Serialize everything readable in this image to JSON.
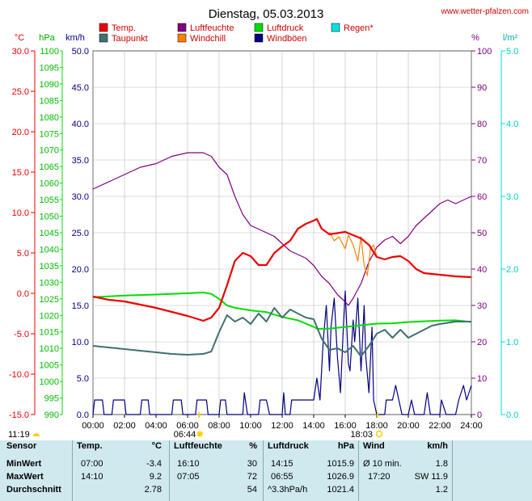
{
  "header": {
    "title": "Dienstag, 05.03.2013",
    "site": "www.wetter-pfalzen.com"
  },
  "legend": [
    {
      "label": "Temp.",
      "color": "#ee0000"
    },
    {
      "label": "Luftfeuchte",
      "color": "#800080"
    },
    {
      "label": "Luftdruck",
      "color": "#00dd00"
    },
    {
      "label": "Regen*",
      "color": "#00e0e0"
    },
    {
      "label": "Taupunkt",
      "color": "#407070"
    },
    {
      "label": "Windchill",
      "color": "#ff8000"
    },
    {
      "label": "Windböen",
      "color": "#000080"
    }
  ],
  "units": {
    "temp": "°C",
    "pressure": "hPa",
    "wind": "km/h",
    "humidity": "%",
    "rain": "l/m²"
  },
  "axes": {
    "temp_ticks": [
      "30.0",
      "25.0",
      "20.0",
      "15.0",
      "10.0",
      "5.0",
      "0.0",
      "-5.0",
      "-10.0",
      "-15.0"
    ],
    "pressure_ticks": [
      "1100",
      "1095",
      "1090",
      "1085",
      "1080",
      "1075",
      "1070",
      "1065",
      "1060",
      "1055",
      "1050",
      "1045",
      "1040",
      "1035",
      "1030",
      "1025",
      "1020",
      "1015",
      "1010",
      "1005",
      "1000",
      "995",
      "990"
    ],
    "wind_ticks": [
      "50.0",
      "45.0",
      "40.0",
      "35.0",
      "30.0",
      "25.0",
      "20.0",
      "15.0",
      "10.0",
      "5.0",
      "0.0"
    ],
    "humidity_ticks": [
      "100",
      "90",
      "80",
      "70",
      "60",
      "50",
      "40",
      "30",
      "20",
      "10",
      "0"
    ],
    "rain_ticks": [
      "5.0",
      "4.0",
      "3.0",
      "2.0",
      "1.0",
      "0.0"
    ],
    "time_ticks": [
      "00:00",
      "02:00",
      "04:00",
      "06:00",
      "08:00",
      "10:00",
      "12:00",
      "14:00",
      "16:00",
      "18:00",
      "20:00",
      "22:00",
      "24:00"
    ]
  },
  "sun": {
    "sunrise": "06:44",
    "sunset": "18:03",
    "moonset": "11:19"
  },
  "table": {
    "headers": {
      "sensor": "Sensor",
      "temp": "Temp.",
      "temp_unit": "°C",
      "hum": "Luftfeuchte",
      "hum_unit": "%",
      "press": "Luftdruck",
      "press_unit": "hPa",
      "wind": "Wind",
      "wind_unit": "km/h"
    },
    "rows": [
      {
        "label": "MinWert",
        "t_time": "07:00",
        "t_val": "-3.4",
        "h_time": "16:10",
        "h_val": "30",
        "p_time": "14:15",
        "p_val": "1015.9",
        "w_time": "Ø 10 min.",
        "w_val": "1.8"
      },
      {
        "label": "MaxWert",
        "t_time": "14:10",
        "t_val": "9.2",
        "h_time": "07:05",
        "h_val": "72",
        "p_time": "06:55",
        "p_val": "1026.9",
        "w_time": "17:20",
        "w_val": "SW 11.9"
      },
      {
        "label": "Durchschnitt",
        "t_time": "",
        "t_val": "2.78",
        "h_time": "",
        "h_val": "54",
        "p_time": "^3.3hPa/h",
        "p_val": "1021.4",
        "w_time": "",
        "w_val": "1.2"
      }
    ]
  },
  "chart_data": {
    "type": "line",
    "title": "Dienstag, 05.03.2013",
    "x_label": "",
    "x_range": [
      "00:00",
      "24:00"
    ],
    "series": [
      {
        "name": "Temp.",
        "axis": "°C",
        "ylim": [
          -15,
          30
        ],
        "points": [
          [
            0,
            -0.4
          ],
          [
            1,
            -0.8
          ],
          [
            2,
            -1.0
          ],
          [
            3,
            -1.4
          ],
          [
            4,
            -1.8
          ],
          [
            5,
            -2.3
          ],
          [
            6,
            -2.8
          ],
          [
            6.5,
            -3.1
          ],
          [
            7,
            -3.4
          ],
          [
            7.5,
            -3.0
          ],
          [
            8,
            -1.8
          ],
          [
            8.5,
            1.0
          ],
          [
            9,
            4.0
          ],
          [
            9.5,
            5.0
          ],
          [
            10,
            4.6
          ],
          [
            10.5,
            3.5
          ],
          [
            11,
            3.5
          ],
          [
            11.5,
            5.0
          ],
          [
            12,
            5.8
          ],
          [
            12.5,
            6.5
          ],
          [
            13,
            8.0
          ],
          [
            13.5,
            8.6
          ],
          [
            14,
            9.0
          ],
          [
            14.2,
            9.2
          ],
          [
            14.5,
            8.0
          ],
          [
            15,
            7.3
          ],
          [
            16,
            7.6
          ],
          [
            16.5,
            7.2
          ],
          [
            17,
            6.8
          ],
          [
            17.5,
            6.0
          ],
          [
            18,
            4.5
          ],
          [
            18.5,
            4.2
          ],
          [
            19,
            4.5
          ],
          [
            19.5,
            4.6
          ],
          [
            20,
            4.0
          ],
          [
            20.5,
            3.0
          ],
          [
            21,
            2.5
          ],
          [
            22,
            2.3
          ],
          [
            23,
            2.1
          ],
          [
            24,
            2.0
          ]
        ]
      },
      {
        "name": "Luftfeuchte",
        "axis": "%",
        "ylim": [
          0,
          100
        ],
        "points": [
          [
            0,
            62
          ],
          [
            1,
            64
          ],
          [
            2,
            66
          ],
          [
            3,
            68
          ],
          [
            4,
            69
          ],
          [
            5,
            71
          ],
          [
            6,
            72
          ],
          [
            7,
            72
          ],
          [
            7.5,
            71
          ],
          [
            8,
            68
          ],
          [
            8.5,
            66
          ],
          [
            9,
            60
          ],
          [
            9.5,
            55
          ],
          [
            10,
            52
          ],
          [
            10.5,
            51
          ],
          [
            11,
            50
          ],
          [
            11.5,
            49
          ],
          [
            12,
            47
          ],
          [
            12.5,
            45
          ],
          [
            13,
            44
          ],
          [
            13.5,
            43
          ],
          [
            14,
            41
          ],
          [
            14.5,
            38
          ],
          [
            15,
            36
          ],
          [
            15.5,
            33
          ],
          [
            16,
            31
          ],
          [
            16.2,
            30
          ],
          [
            16.5,
            32
          ],
          [
            17,
            36
          ],
          [
            17.5,
            42
          ],
          [
            18,
            46
          ],
          [
            18.5,
            48
          ],
          [
            19,
            49
          ],
          [
            19.5,
            47
          ],
          [
            20,
            49
          ],
          [
            20.5,
            52
          ],
          [
            21,
            54
          ],
          [
            21.5,
            56
          ],
          [
            22,
            58
          ],
          [
            22.5,
            59
          ],
          [
            23,
            58
          ],
          [
            24,
            60
          ]
        ]
      },
      {
        "name": "Luftdruck",
        "axis": "hPa",
        "ylim": [
          990,
          1100
        ],
        "points": [
          [
            0,
            1025.5
          ],
          [
            2,
            1026.0
          ],
          [
            4,
            1026.3
          ],
          [
            6,
            1026.7
          ],
          [
            7,
            1026.9
          ],
          [
            7.5,
            1026.5
          ],
          [
            8,
            1025.0
          ],
          [
            8.5,
            1023.0
          ],
          [
            9,
            1022.3
          ],
          [
            10,
            1021.5
          ],
          [
            11,
            1021.0
          ],
          [
            12,
            1019.5
          ],
          [
            13,
            1018.5
          ],
          [
            14,
            1016.5
          ],
          [
            14.25,
            1015.9
          ],
          [
            15,
            1016.0
          ],
          [
            16,
            1016.5
          ],
          [
            17,
            1017.0
          ],
          [
            18,
            1017.5
          ],
          [
            19,
            1017.6
          ],
          [
            20,
            1018.0
          ],
          [
            21,
            1018.2
          ],
          [
            22,
            1018.4
          ],
          [
            23,
            1018.5
          ],
          [
            24,
            1018.0
          ]
        ]
      },
      {
        "name": "Taupunkt",
        "axis": "°C",
        "ylim": [
          -15,
          30
        ],
        "points": [
          [
            0,
            -6.5
          ],
          [
            1,
            -6.7
          ],
          [
            2,
            -6.9
          ],
          [
            3,
            -7.1
          ],
          [
            4,
            -7.3
          ],
          [
            5,
            -7.5
          ],
          [
            6,
            -7.6
          ],
          [
            7,
            -7.5
          ],
          [
            7.5,
            -7.2
          ],
          [
            8,
            -4.8
          ],
          [
            8.5,
            -2.7
          ],
          [
            9,
            -3.5
          ],
          [
            9.5,
            -3.0
          ],
          [
            10,
            -3.8
          ],
          [
            10.5,
            -2.5
          ],
          [
            11,
            -3.5
          ],
          [
            11.5,
            -1.8
          ],
          [
            12,
            -3.0
          ],
          [
            12.5,
            -2.0
          ],
          [
            13,
            -2.5
          ],
          [
            13.5,
            -3.0
          ],
          [
            14,
            -3.2
          ],
          [
            14.5,
            -5.6
          ],
          [
            15,
            -7.0
          ],
          [
            15.5,
            -6.8
          ],
          [
            16,
            -7.3
          ],
          [
            16.5,
            -6.5
          ],
          [
            17,
            -7.8
          ],
          [
            17.5,
            -6.5
          ],
          [
            18,
            -5.0
          ],
          [
            18.5,
            -4.5
          ],
          [
            19,
            -5.5
          ],
          [
            19.5,
            -4.5
          ],
          [
            20,
            -5.5
          ],
          [
            20.5,
            -5.0
          ],
          [
            21,
            -4.5
          ],
          [
            21.5,
            -4.0
          ],
          [
            22,
            -3.8
          ],
          [
            23,
            -3.5
          ],
          [
            24,
            -3.5
          ]
        ]
      },
      {
        "name": "Windchill",
        "axis": "°C",
        "ylim": [
          -15,
          30
        ],
        "points": [
          [
            15,
            7.6
          ],
          [
            15.3,
            6.5
          ],
          [
            15.6,
            7.0
          ],
          [
            16,
            5.5
          ],
          [
            16.2,
            7.2
          ],
          [
            16.5,
            6.0
          ],
          [
            16.8,
            4.0
          ],
          [
            17.0,
            7.0
          ],
          [
            17.2,
            3.5
          ],
          [
            17.4,
            2.2
          ],
          [
            17.6,
            5.5
          ],
          [
            17.8,
            6.0
          ],
          [
            18,
            4.5
          ]
        ]
      },
      {
        "name": "Windböen",
        "axis": "km/h",
        "ylim": [
          0,
          50
        ],
        "points": [
          [
            0,
            0
          ],
          [
            0.1,
            2
          ],
          [
            0.6,
            2
          ],
          [
            0.7,
            0
          ],
          [
            1.2,
            0
          ],
          [
            1.3,
            2
          ],
          [
            2.0,
            2
          ],
          [
            2.1,
            0
          ],
          [
            3,
            0
          ],
          [
            3.1,
            2
          ],
          [
            3.5,
            2
          ],
          [
            3.6,
            0
          ],
          [
            5,
            0
          ],
          [
            5.1,
            2
          ],
          [
            5.6,
            2
          ],
          [
            5.7,
            0
          ],
          [
            6.5,
            0
          ],
          [
            6.6,
            2
          ],
          [
            7.2,
            2
          ],
          [
            7.3,
            0
          ],
          [
            8,
            0
          ],
          [
            8.1,
            2
          ],
          [
            8.4,
            2
          ],
          [
            8.5,
            0
          ],
          [
            9.5,
            0
          ],
          [
            9.6,
            3
          ],
          [
            9.8,
            0
          ],
          [
            10.5,
            0
          ],
          [
            10.6,
            2
          ],
          [
            11,
            2
          ],
          [
            11.2,
            0
          ],
          [
            12,
            0
          ],
          [
            12.1,
            3
          ],
          [
            12.2,
            0
          ],
          [
            12.5,
            0
          ],
          [
            12.6,
            2
          ],
          [
            14,
            2
          ],
          [
            14.2,
            5
          ],
          [
            14.4,
            2
          ],
          [
            14.6,
            10
          ],
          [
            14.8,
            15
          ],
          [
            15,
            6
          ],
          [
            15.1,
            12
          ],
          [
            15.3,
            16
          ],
          [
            15.5,
            8
          ],
          [
            15.7,
            3
          ],
          [
            15.9,
            13
          ],
          [
            16,
            17
          ],
          [
            16.2,
            7
          ],
          [
            16.3,
            6
          ],
          [
            16.5,
            13
          ],
          [
            16.6,
            10
          ],
          [
            16.8,
            16
          ],
          [
            17.0,
            6
          ],
          [
            17.2,
            15
          ],
          [
            17.3,
            8
          ],
          [
            17.5,
            3
          ],
          [
            17.7,
            12
          ],
          [
            17.8,
            2
          ],
          [
            18,
            0
          ],
          [
            18.5,
            0
          ],
          [
            18.6,
            2
          ],
          [
            19,
            2
          ],
          [
            19.2,
            4
          ],
          [
            19.4,
            2
          ],
          [
            19.6,
            0
          ],
          [
            20,
            0
          ],
          [
            20.2,
            2
          ],
          [
            20.4,
            0
          ],
          [
            21,
            0
          ],
          [
            21.2,
            3
          ],
          [
            21.4,
            0
          ],
          [
            22,
            0
          ],
          [
            22.1,
            2
          ],
          [
            22.4,
            0
          ],
          [
            23,
            0
          ],
          [
            23.2,
            2
          ],
          [
            23.5,
            4
          ],
          [
            23.7,
            2
          ],
          [
            24,
            4
          ]
        ]
      }
    ]
  }
}
